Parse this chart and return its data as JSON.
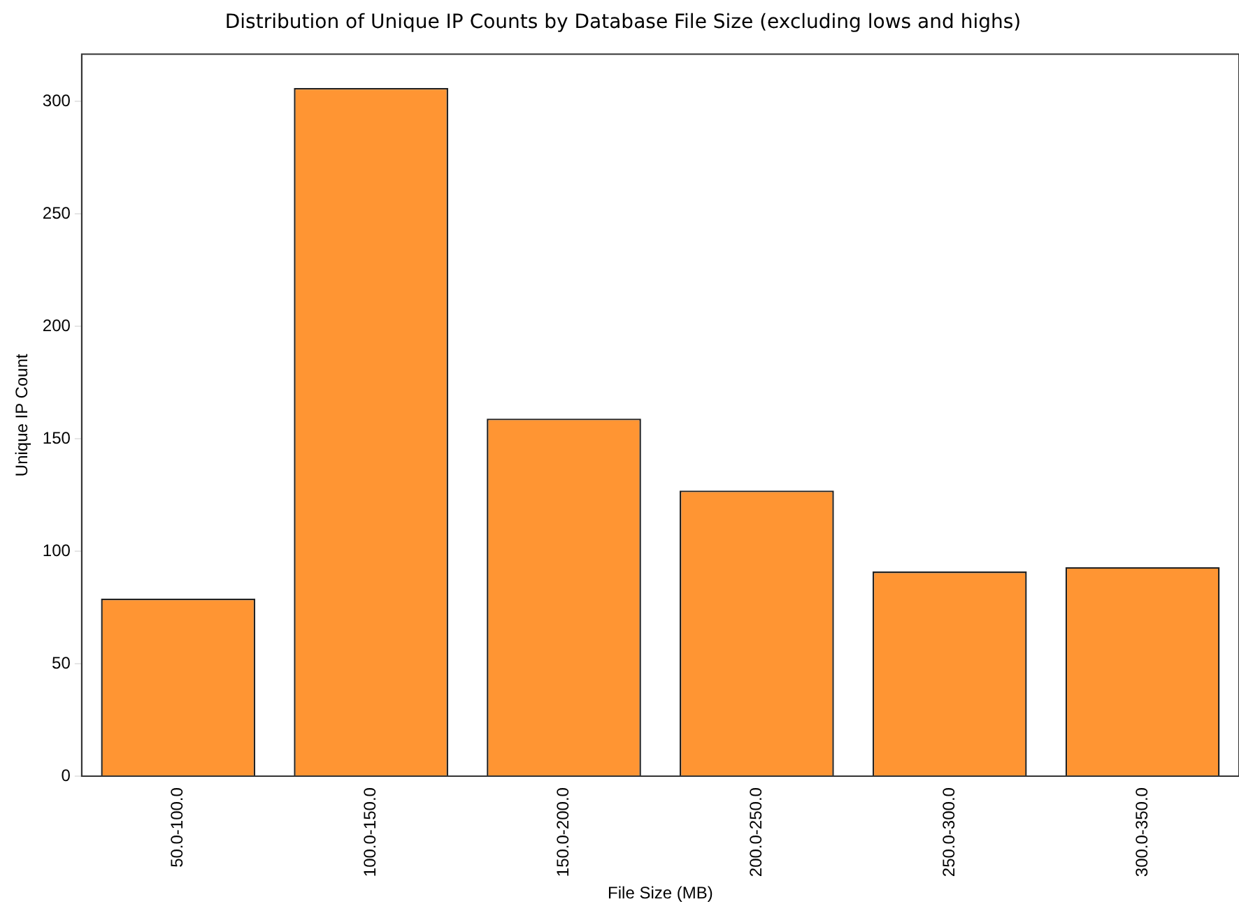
{
  "chart_data": {
    "type": "bar",
    "title": "Distribution of Unique IP Counts by Database File Size (excluding lows and highs)",
    "xlabel": "File Size (MB)",
    "ylabel": "Unique IP Count",
    "categories": [
      "50.0-100.0",
      "100.0-150.0",
      "150.0-200.0",
      "200.0-250.0",
      "250.0-300.0",
      "300.0-350.0"
    ],
    "values": [
      79,
      306,
      159,
      127,
      91,
      93
    ],
    "color": "#ff9533",
    "ylim": [
      0,
      321
    ],
    "yticks": [
      0,
      50,
      100,
      150,
      200,
      250,
      300
    ],
    "grid": false,
    "legend": false
  }
}
